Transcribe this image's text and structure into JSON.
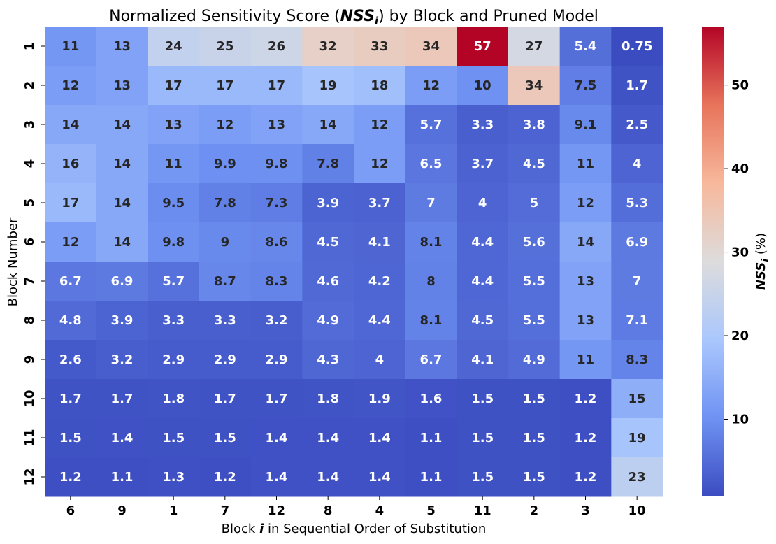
{
  "chart_data": {
    "type": "heatmap",
    "title": {
      "prefix": "Normalized Sensitivity Score (",
      "symbol": "NSS",
      "sub": "i",
      "suffix": ") by Block and Pruned Model"
    },
    "xlabel": {
      "prefix": "Block ",
      "symbol": "i",
      "suffix": " in Sequential Order of Substitution"
    },
    "ylabel": "Block Number",
    "colorbar_label": {
      "symbol": "NSS",
      "sub": "i",
      "suffix": " (%)"
    },
    "x_categories": [
      "6",
      "9",
      "1",
      "7",
      "12",
      "8",
      "4",
      "5",
      "11",
      "2",
      "3",
      "10"
    ],
    "y_categories": [
      "1",
      "2",
      "3",
      "4",
      "5",
      "6",
      "7",
      "8",
      "9",
      "10",
      "11",
      "12"
    ],
    "values": [
      [
        11,
        13,
        24,
        25,
        26,
        32,
        33,
        34,
        57,
        27,
        5.4,
        0.75
      ],
      [
        12,
        13,
        17,
        17,
        17,
        19,
        18,
        12,
        10,
        34,
        7.5,
        1.7
      ],
      [
        14,
        14,
        13,
        12,
        13,
        14,
        12,
        5.7,
        3.3,
        3.8,
        9.1,
        2.5
      ],
      [
        16,
        14,
        11,
        9.9,
        9.8,
        7.8,
        12,
        6.5,
        3.7,
        4.5,
        11,
        4
      ],
      [
        17,
        14,
        9.5,
        7.8,
        7.3,
        3.9,
        3.7,
        7,
        4,
        5,
        12,
        5.3
      ],
      [
        12,
        14,
        9.8,
        9,
        8.6,
        4.5,
        4.1,
        8.1,
        4.4,
        5.6,
        14,
        6.9
      ],
      [
        6.7,
        6.9,
        5.7,
        8.7,
        8.3,
        4.6,
        4.2,
        8,
        4.4,
        5.5,
        13,
        7
      ],
      [
        4.8,
        3.9,
        3.3,
        3.3,
        3.2,
        4.9,
        4.4,
        8.1,
        4.5,
        5.5,
        13,
        7.1
      ],
      [
        2.6,
        3.2,
        2.9,
        2.9,
        2.9,
        4.3,
        4,
        6.7,
        4.1,
        4.9,
        11,
        8.3
      ],
      [
        1.7,
        1.7,
        1.8,
        1.7,
        1.7,
        1.8,
        1.9,
        1.6,
        1.5,
        1.5,
        1.2,
        15
      ],
      [
        1.5,
        1.4,
        1.5,
        1.5,
        1.4,
        1.4,
        1.4,
        1.1,
        1.5,
        1.5,
        1.2,
        19
      ],
      [
        1.2,
        1.1,
        1.3,
        1.2,
        1.4,
        1.4,
        1.4,
        1.1,
        1.5,
        1.5,
        1.2,
        23
      ]
    ],
    "vmin": 0.75,
    "vmax": 57,
    "colorbar_ticks": [
      10,
      20,
      30,
      40,
      50
    ],
    "colormap": "coolwarm",
    "colormap_stops": [
      "#3b4cc0",
      "#6f92f3",
      "#aac7fd",
      "#dddcdc",
      "#f7b89c",
      "#e7745b",
      "#b40426"
    ],
    "annotation_text_dark": "#262626",
    "annotation_text_light": "#ffffff"
  }
}
